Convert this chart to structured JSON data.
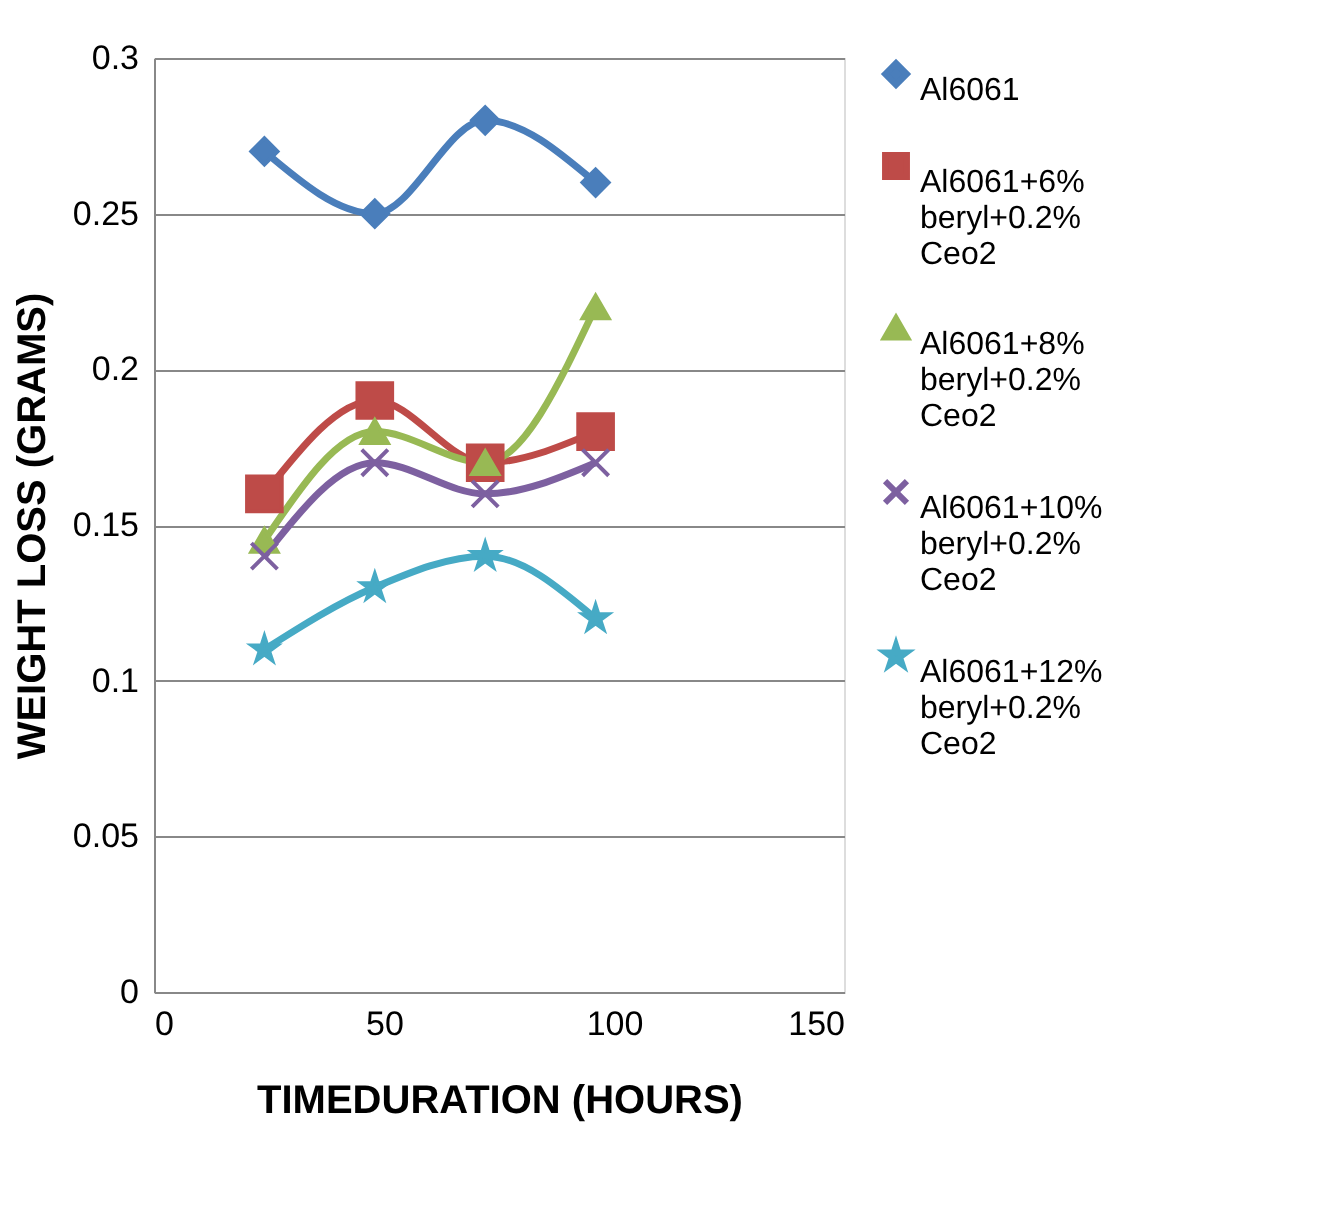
{
  "chart_data": {
    "type": "line",
    "xlabel": "TIMEDURATION (HOURS)",
    "ylabel": "WEIGHT LOSS (GRAMS)",
    "x": [
      24,
      48,
      72,
      96
    ],
    "series": [
      {
        "name": "Al6061",
        "color": "#4a7ebb",
        "marker": "diamond",
        "values": [
          0.27,
          0.25,
          0.28,
          0.26
        ]
      },
      {
        "name": "Al6061+6% beryl+0.2% Ceo2",
        "color": "#be4b48",
        "marker": "square",
        "values": [
          0.16,
          0.19,
          0.17,
          0.18
        ]
      },
      {
        "name": "Al6061+8% beryl+0.2% Ceo2",
        "color": "#98b954",
        "marker": "triangle",
        "values": [
          0.145,
          0.18,
          0.17,
          0.22
        ]
      },
      {
        "name": "Al6061+10%beryl+0.2%Ceo2",
        "color": "#7d60a0",
        "marker": "cross",
        "values": [
          0.14,
          0.17,
          0.16,
          0.17
        ]
      },
      {
        "name": "Al6061+12%beryl+0.2%Ceo2",
        "color": "#46aac5",
        "marker": "star",
        "values": [
          0.11,
          0.13,
          0.14,
          0.12
        ]
      }
    ],
    "xlim": [
      0,
      150
    ],
    "xticks": [
      0,
      50,
      100,
      150
    ],
    "ylim": [
      0,
      0.3
    ],
    "yticks": [
      0,
      0.05,
      0.1,
      0.15,
      0.2,
      0.25,
      0.3
    ],
    "grid": "y",
    "legend": "right",
    "line_style": "solid"
  }
}
